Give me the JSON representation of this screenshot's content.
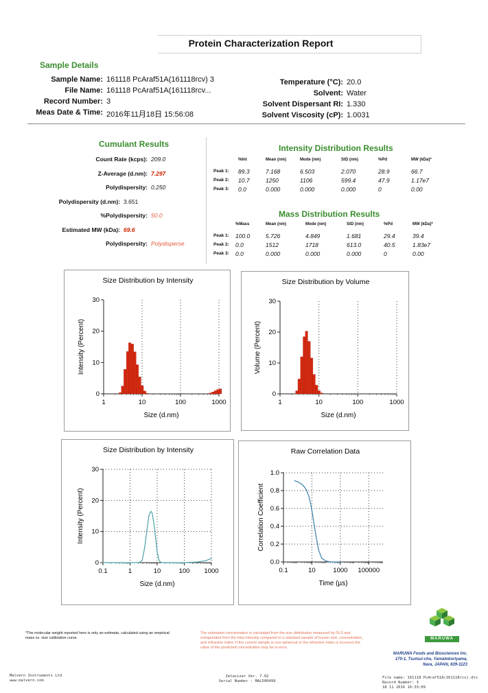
{
  "report": {
    "title": "Protein Characterization Report"
  },
  "sample_details": {
    "heading": "Sample Details",
    "left": [
      {
        "label": "Sample Name:",
        "value": "161118 PcAraf51A(161118rcv) 3"
      },
      {
        "label": "File Name:",
        "value": "161118 PcAraf51A(161118rcv..."
      },
      {
        "label": "Record Number:",
        "value": "3"
      },
      {
        "label": "Meas Date & Time:",
        "value": "2016年11月18日 15:56:08"
      }
    ],
    "right": [
      {
        "label": "Temperature (°C):",
        "value": "20.0"
      },
      {
        "label": "Solvent:",
        "value": "Water"
      },
      {
        "label": "Solvent Dispersant RI:",
        "value": "1.330"
      },
      {
        "label": "Solvent Viscosity (cP):",
        "value": "1.0031"
      }
    ]
  },
  "cumulant": {
    "heading": "Cumulant Results",
    "rows": [
      {
        "label": "Count Rate (kcps):",
        "value": "209.0",
        "style": "normal"
      },
      {
        "label": "Z-Average (d.nm):",
        "value": "7.297",
        "style": "red"
      },
      {
        "label": "Polydispersity:",
        "value": "0.250",
        "style": "normal"
      },
      {
        "label": "Polydispersity (d.nm):",
        "value": "3.651",
        "style": "plain"
      },
      {
        "label": "%Polydispersity:",
        "value": "50.0",
        "style": "redlight"
      },
      {
        "label": "Estimated MW (kDa):",
        "value": "69.6",
        "style": "red"
      },
      {
        "label": "Polydispersity:",
        "value": "Polydisperse",
        "style": "redlight"
      }
    ]
  },
  "intensity_results": {
    "heading": "Intensity Distribution Results",
    "columns": [
      "",
      "%Int",
      "Mean (nm)",
      "Mode (nm)",
      "StD (nm)",
      "%Pd",
      "MW (kDa)*"
    ],
    "rows": [
      [
        "Peak 1:",
        "89.3",
        "7.168",
        "6.503",
        "2.070",
        "28.9",
        "66.7"
      ],
      [
        "Peak 2:",
        "10.7",
        "1250",
        "1106",
        "599.4",
        "47.9",
        "1.17e7"
      ],
      [
        "Peak 3:",
        "0.0",
        "0.000",
        "0.000",
        "0.000",
        "0",
        "0.00"
      ]
    ]
  },
  "mass_results": {
    "heading": "Mass Distribution Results",
    "columns": [
      "",
      "%Mass",
      "Mean (nm)",
      "Mode (nm)",
      "StD (nm)",
      "%Pd",
      "MW (kDa)*"
    ],
    "rows": [
      [
        "Peak 1:",
        "100.0",
        "5.726",
        "4.849",
        "1.681",
        "29.4",
        "39.4"
      ],
      [
        "Peak 2:",
        "0.0",
        "1512",
        "1718",
        "613.0",
        "40.5",
        "1.83e7"
      ],
      [
        "Peak 3:",
        "0.0",
        "0.000",
        "0.000",
        "0.000",
        "0",
        "0.00"
      ]
    ]
  },
  "chart_data": [
    {
      "type": "bar",
      "title": "Size Distribution by Intensity",
      "xlabel": "Size (d.nm)",
      "ylabel": "Intensity (Percent)",
      "xscale": "log",
      "xlim": [
        1,
        1000
      ],
      "x_ticks": [
        "1",
        "10",
        "100",
        "1000"
      ],
      "ylim": [
        0,
        30
      ],
      "y_ticks": [
        "0",
        "10",
        "20",
        "30"
      ],
      "grid": "dotted vertical",
      "color": "#d42a10",
      "x": [
        2.7,
        3.1,
        3.6,
        4.2,
        4.8,
        5.6,
        6.5,
        7.5,
        8.7,
        10.1,
        11.7,
        13.5,
        600,
        700,
        810,
        940,
        1090
      ],
      "values": [
        0.4,
        2.5,
        7.8,
        13.5,
        16.3,
        15.9,
        13.4,
        9.3,
        5.4,
        2.6,
        0.9,
        0.2,
        0.3,
        0.6,
        1.0,
        1.4,
        1.6
      ]
    },
    {
      "type": "bar",
      "title": "Size Distribution by Volume",
      "xlabel": "Size (d.nm)",
      "ylabel": "Volume (Percent)",
      "xscale": "log",
      "xlim": [
        1,
        1000
      ],
      "x_ticks": [
        "1",
        "10",
        "100",
        "1000"
      ],
      "ylim": [
        0,
        30
      ],
      "y_ticks": [
        "0",
        "10",
        "20",
        "30"
      ],
      "grid": "dotted vertical",
      "color": "#d42a10",
      "x": [
        2.7,
        3.1,
        3.6,
        4.2,
        4.8,
        5.6,
        6.5,
        7.5,
        8.7,
        10.1,
        11.7
      ],
      "values": [
        1.0,
        4.8,
        12.0,
        18.5,
        20.3,
        17.0,
        11.6,
        6.3,
        2.8,
        1.0,
        0.3
      ]
    },
    {
      "type": "line",
      "title": "Size Distribution by Intensity",
      "xlabel": "Size (d.nm)",
      "ylabel": "Intensity (Percent)",
      "xscale": "log",
      "xlim": [
        0.1,
        1000
      ],
      "x_ticks": [
        "0.1",
        "1",
        "10",
        "100",
        "1000"
      ],
      "ylim": [
        0,
        30
      ],
      "y_ticks": [
        "0",
        "10",
        "20",
        "30"
      ],
      "grid": "dotted both",
      "color": "#4aa0a8",
      "x": [
        0.1,
        2.2,
        2.8,
        3.4,
        4.2,
        5.0,
        5.8,
        6.5,
        7.5,
        8.7,
        10,
        11.5,
        13,
        15,
        100,
        300,
        600,
        1000
      ],
      "values": [
        0,
        0,
        0.8,
        4.5,
        10.5,
        15.2,
        16.5,
        16.0,
        12.8,
        8.0,
        3.5,
        1.0,
        0.2,
        0,
        0,
        0.2,
        0.6,
        1.3
      ]
    },
    {
      "type": "line",
      "title": "Raw Correlation Data",
      "xlabel": "Time (µs)",
      "ylabel": "Correlation Coefficient",
      "xscale": "log",
      "xlim": [
        0.1,
        1000000
      ],
      "x_ticks": [
        "0.1",
        "10",
        "1000",
        "100000"
      ],
      "ylim": [
        0,
        1.0
      ],
      "y_ticks": [
        "0.0",
        "0.2",
        "0.4",
        "0.6",
        "0.8",
        "1.0"
      ],
      "grid": "dotted both",
      "color": "#3a7fa8",
      "x": [
        0.6,
        1,
        2,
        3,
        4,
        6,
        8,
        10,
        15,
        20,
        30,
        50,
        100,
        200,
        1000
      ],
      "values": [
        0.91,
        0.9,
        0.87,
        0.84,
        0.81,
        0.74,
        0.66,
        0.58,
        0.4,
        0.28,
        0.13,
        0.04,
        0.01,
        0.0,
        0.0
      ]
    }
  ],
  "footer": {
    "mw_note": "*The molecular weight reported here is only an estimate, calculated using an empirical mass vs. size calibration curve.",
    "conc_note": "The estimated concentration is calculated from the size distribution measured by DLS and extrapolated from the total intensity compared to a standard sample of known size, concentration, and refractive index. If the current sample is non-spherical or the refractive index is incorrect the value of the predicted concentration may be in error.",
    "company_logo_text": "MARUWA",
    "company_name": "MARUWA Foods and Biosciences Inc.",
    "company_address1": "170-1, Tsutsui-cho, Yamatokoriyama,",
    "company_address2": "Nara, JAPAN, 639-1123",
    "malvern1": "Malvern Instruments Ltd",
    "malvern2": "www.malvern.com",
    "zetasizer": "Zetasizer Ver. 7.02",
    "serial": "Serial Number : MAL500499",
    "file_name": "File name: 161118 PcAraf51A(161118rcv).dts",
    "record": "Record Number: 3",
    "date": "18 11 2016 16:33:09"
  },
  "colors": {
    "heading_green": "#3a8c2e",
    "value_red": "#cc2200",
    "bar_red": "#d42a10",
    "line_teal": "#4aa0a8"
  }
}
